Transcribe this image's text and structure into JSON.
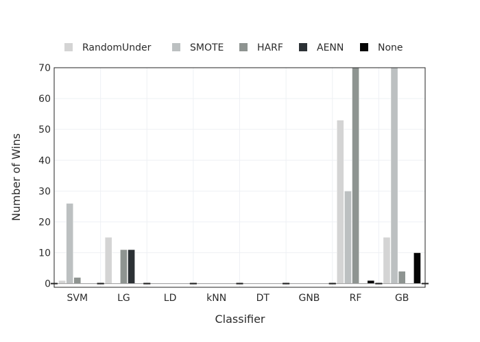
{
  "chart_data": {
    "type": "bar",
    "xlabel": "Classifier",
    "ylabel": "Number of Wins",
    "ylim": [
      -1.2,
      70
    ],
    "yticks": [
      0,
      10,
      20,
      30,
      40,
      50,
      60,
      70
    ],
    "grid": true,
    "legend_position": "top",
    "categories": [
      "SVM",
      "LG",
      "LD",
      "kNN",
      "DT",
      "GNB",
      "RF",
      "GB"
    ],
    "series": [
      {
        "name": "RandomUnder",
        "color": "#d4d4d4",
        "values": [
          1,
          15,
          0,
          0,
          0,
          0,
          53,
          15
        ]
      },
      {
        "name": "SMOTE",
        "color": "#bcc0c1",
        "values": [
          26,
          0,
          0,
          0,
          0,
          0,
          30,
          70
        ]
      },
      {
        "name": "HARF",
        "color": "#8e9491",
        "values": [
          2,
          11,
          0,
          0,
          0,
          0,
          70,
          4
        ]
      },
      {
        "name": "AENN",
        "color": "#2c3135",
        "values": [
          0,
          11,
          0,
          0,
          0,
          0,
          0,
          0
        ]
      },
      {
        "name": "None",
        "color": "#050505",
        "values": [
          0,
          0,
          0,
          0,
          0,
          0,
          1,
          10
        ]
      }
    ]
  }
}
